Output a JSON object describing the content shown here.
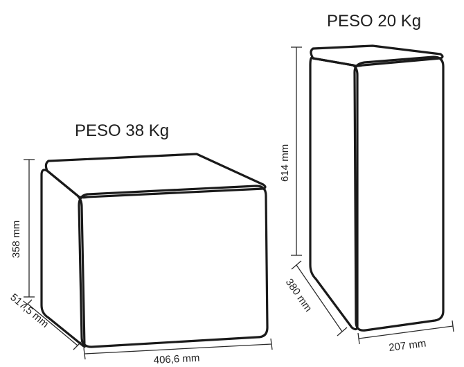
{
  "boxes": [
    {
      "title": "PESO 38 Kg",
      "dimensions": {
        "height": "358 mm",
        "depth": "517,5 mm",
        "width": "406,6 mm"
      }
    },
    {
      "title": "PESO 20 Kg",
      "dimensions": {
        "height": "614 mm",
        "depth": "380 mm",
        "width": "207 mm"
      }
    }
  ],
  "colors": {
    "front": "#dedee3",
    "side": "#a8a8ae",
    "top": "#c8c8cd",
    "outline": "#1a1a1a"
  }
}
